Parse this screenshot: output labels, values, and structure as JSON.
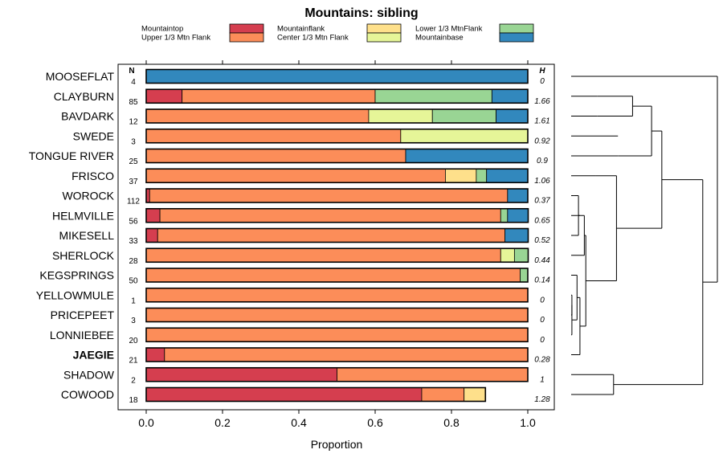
{
  "chart_data": {
    "type": "bar",
    "orientation": "horizontal",
    "stacked": true,
    "title": "Mountains: sibling",
    "xlabel": "Proportion",
    "ylabel": "",
    "xlim": [
      0,
      1
    ],
    "xticks": [
      "0.0",
      "0.2",
      "0.4",
      "0.6",
      "0.8",
      "1.0"
    ],
    "n_header": "N",
    "h_header": "H",
    "highlighted": "JAEGIE",
    "legend": [
      {
        "name": "Mountaintop",
        "color": "#d53e4f"
      },
      {
        "name": "Upper 1/3 Mtn Flank",
        "color": "#fc8d59"
      },
      {
        "name": "Mountainflank",
        "color": "#fee08b"
      },
      {
        "name": "Center 1/3 Mtn Flank",
        "color": "#e6f598"
      },
      {
        "name": "Lower 1/3 MtnFlank",
        "color": "#99d594"
      },
      {
        "name": "Mountainbase",
        "color": "#3288bd"
      }
    ],
    "categories": [
      "MOOSEFLAT",
      "CLAYBURN",
      "BAVDARK",
      "SWEDE",
      "TONGUE RIVER",
      "FRISCO",
      "WOROCK",
      "HELMVILLE",
      "MIKESELL",
      "SHERLOCK",
      "KEGSPRINGS",
      "YELLOWMULE",
      "PRICEPEET",
      "LONNIEBEE",
      "JAEGIE",
      "SHADOW",
      "COWOOD"
    ],
    "n": [
      "4",
      "85",
      "12",
      "3",
      "25",
      "37",
      "112",
      "56",
      "33",
      "28",
      "50",
      "1",
      "3",
      "20",
      "21",
      "2",
      "18"
    ],
    "h": [
      "0",
      "1.66",
      "1.61",
      "0.92",
      "0.9",
      "1.06",
      "0.37",
      "0.65",
      "0.52",
      "0.44",
      "0.14",
      "0",
      "0",
      "0",
      "0.28",
      "1",
      "1.28"
    ],
    "series": [
      {
        "name": "Mountaintop",
        "values": [
          0,
          0.094,
          0,
          0,
          0,
          0,
          0.009,
          0.036,
          0.03,
          0,
          0,
          0,
          0,
          0,
          0.048,
          0.5,
          0.722
        ]
      },
      {
        "name": "Upper 1/3 Mtn Flank",
        "values": [
          0,
          0.506,
          0.583,
          0.667,
          0.68,
          0.784,
          0.938,
          0.893,
          0.91,
          0.929,
          0.98,
          1,
          1,
          1,
          0.952,
          0.5,
          0.111
        ]
      },
      {
        "name": "Mountainflank",
        "values": [
          0,
          0,
          0,
          0,
          0,
          0.081,
          0,
          0,
          0,
          0,
          0,
          0,
          0,
          0,
          0,
          0,
          0.056
        ]
      },
      {
        "name": "Center 1/3 Mtn Flank",
        "values": [
          0,
          0,
          0.167,
          0.333,
          0,
          0,
          0,
          0,
          0,
          0.036,
          0,
          0,
          0,
          0,
          0,
          0,
          0
        ]
      },
      {
        "name": "Lower 1/3 MtnFlank",
        "values": [
          0,
          0.306,
          0.167,
          0,
          0,
          0.027,
          0,
          0.018,
          0,
          0.036,
          0.02,
          0,
          0,
          0,
          0,
          0,
          0
        ]
      },
      {
        "name": "Mountainbase",
        "values": [
          1,
          0.094,
          0.083,
          0,
          0.32,
          0.108,
          0.053,
          0.054,
          0.061,
          0,
          0,
          0,
          0,
          0,
          0,
          0,
          0
        ]
      }
    ],
    "dendrogram": [
      [
        "MOOSEFLAT",
        0.0,
        1.0
      ],
      [
        "CLAYBURN",
        0.0,
        0.18
      ],
      [
        "BAVDARK",
        0.0,
        0.18
      ],
      [
        1,
        2,
        0.42
      ],
      [
        "SWEDE",
        0.0,
        0.32
      ],
      [
        "TONGUE RIVER",
        0.0,
        0.32
      ],
      [
        3,
        5,
        0.55
      ],
      [
        "FRISCO",
        0.0,
        0.17
      ],
      [
        "WOROCK",
        0.0,
        0.02
      ],
      [
        "HELMVILLE",
        0.0,
        0.04
      ],
      [
        "MIKESELL",
        0.0,
        0.02
      ],
      [
        8,
        10,
        0.05
      ],
      [
        9,
        11,
        0.06
      ],
      [
        "SHERLOCK",
        0.0,
        0.08
      ],
      [
        12,
        13,
        0.09
      ],
      [
        "KEGSPRINGS",
        0.0,
        0.03
      ],
      [
        "YELLOWMULE",
        0.0,
        0.005
      ],
      [
        "PRICEPEET",
        0.0,
        0.005
      ],
      [
        "LONNIEBEE",
        0.0,
        0.005
      ],
      [
        16,
        17,
        0.005
      ],
      [
        19,
        18,
        0.005
      ],
      [
        20,
        15,
        0.04
      ],
      [
        "JAEGIE",
        0.0,
        0.05
      ],
      [
        21,
        22,
        0.06
      ],
      [
        14,
        23,
        0.1
      ],
      [
        7,
        24,
        0.31
      ],
      [
        6,
        25,
        0.62
      ],
      [
        "SHADOW",
        0.0,
        0.29
      ],
      [
        "COWOOD",
        0.0,
        0.29
      ],
      [
        27,
        28,
        0.29
      ],
      [
        26,
        29,
        0.9
      ],
      [
        0,
        30,
        1.0
      ]
    ]
  }
}
